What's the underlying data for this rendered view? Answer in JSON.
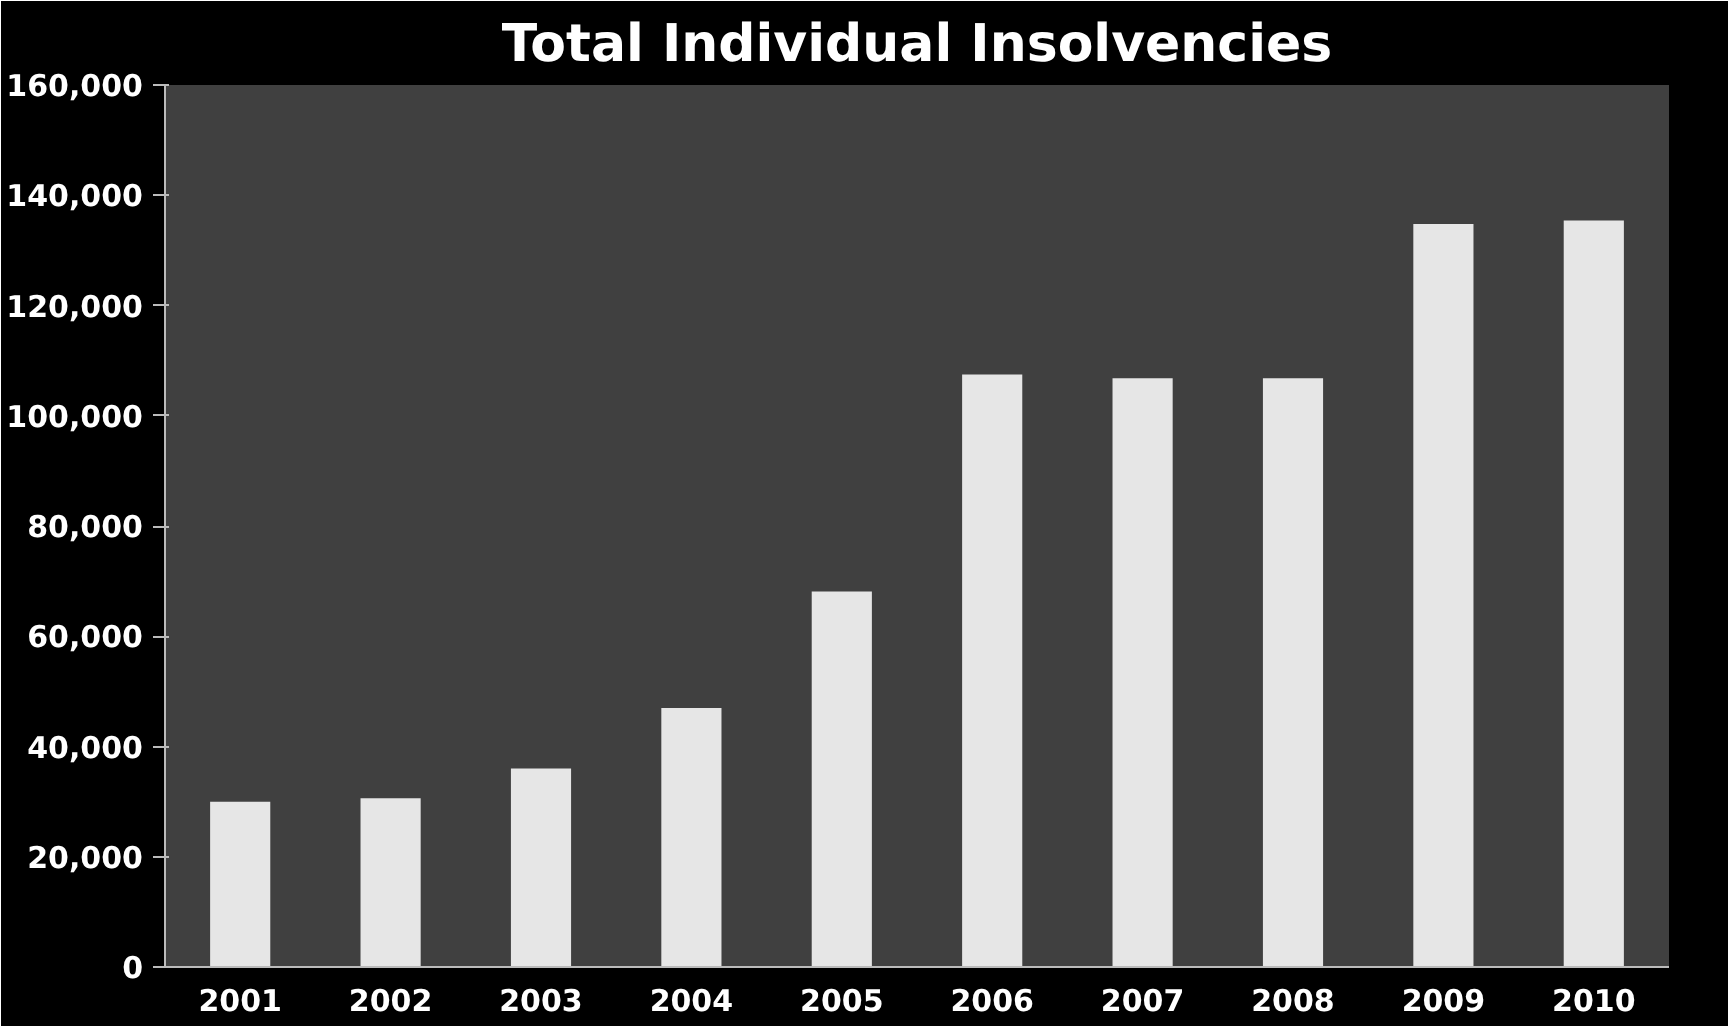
{
  "chart_data": {
    "type": "bar",
    "title": "Total Individual Insolvencies",
    "categories": [
      "2001",
      "2002",
      "2003",
      "2004",
      "2005",
      "2006",
      "2007",
      "2008",
      "2009",
      "2010"
    ],
    "values": [
      30000,
      30600,
      36000,
      47000,
      68100,
      107500,
      106800,
      106800,
      134800,
      135400
    ],
    "color": "#e6e6e6",
    "ylim": [
      0,
      160000
    ],
    "yticks": [
      {
        "value": 0,
        "label": "0"
      },
      {
        "value": 20000,
        "label": "20,000"
      },
      {
        "value": 40000,
        "label": "40,000"
      },
      {
        "value": 60000,
        "label": "60,000"
      },
      {
        "value": 80000,
        "label": "80,000"
      },
      {
        "value": 100000,
        "label": "100,000"
      },
      {
        "value": 120000,
        "label": "120,000"
      },
      {
        "value": 140000,
        "label": "140,000"
      },
      {
        "value": 160000,
        "label": "160,000"
      }
    ],
    "grid": false
  }
}
